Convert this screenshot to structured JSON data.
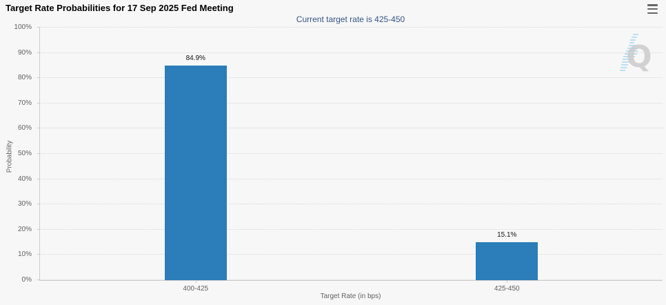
{
  "header": {
    "title": "Target Rate Probabilities for 17 Sep 2025 Fed Meeting",
    "subtitle": "Current target rate is 425-450"
  },
  "toolbar": {
    "menu_icon": "hamburger-menu-icon"
  },
  "chart_data": {
    "type": "bar",
    "title": "Target Rate Probabilities for 17 Sep 2025 Fed Meeting",
    "subtitle": "Current target rate is 425-450",
    "categories": [
      "400-425",
      "425-450"
    ],
    "values": [
      84.9,
      15.1
    ],
    "data_labels": [
      "84.9%",
      "15.1%"
    ],
    "xlabel": "Target Rate (in bps)",
    "ylabel": "Probability",
    "ylim": [
      0,
      100
    ],
    "yticks": [
      "0%",
      "10%",
      "20%",
      "30%",
      "40%",
      "50%",
      "60%",
      "70%",
      "80%",
      "90%",
      "100%"
    ],
    "grid": "dotted-horizontal",
    "legend": "none",
    "bar_color": "#2b7eb9"
  },
  "watermark": {
    "letter": "Q",
    "grey": "#cbcbcb",
    "blue": "#a9d7ef"
  },
  "colors": {
    "background": "#f7f7f7",
    "bar": "#2b7eb9",
    "subtitle_text": "#34548b",
    "grid": "#d9d9d9",
    "axis": "#cccccc",
    "tick_text": "#606060"
  }
}
